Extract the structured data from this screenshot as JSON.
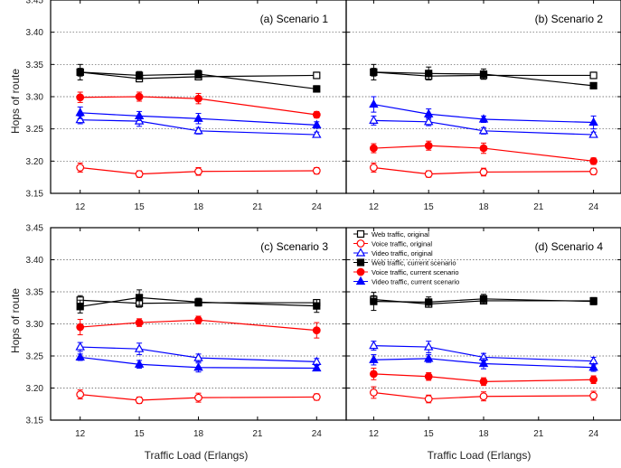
{
  "figure": {
    "y_axis_label": "Hops of route",
    "x_axis_label": "Traffic Load (Erlangs)"
  },
  "chart_data": [
    {
      "type": "line",
      "title": "(a) Scenario 1",
      "xlabel": "",
      "ylabel": "Hops of route",
      "x": [
        12,
        15,
        18,
        24
      ],
      "xlim": [
        10.5,
        25.5
      ],
      "xticks": [
        12,
        15,
        18,
        21,
        24
      ],
      "ylim": [
        3.15,
        3.45
      ],
      "yticks": [
        3.15,
        3.2,
        3.25,
        3.3,
        3.35,
        3.4,
        3.45
      ],
      "grid": "horizontal dotted",
      "series": [
        {
          "values": [
            3.338,
            3.328,
            3.331,
            3.333
          ],
          "err": [
            0.006,
            0.005,
            0.005,
            0.005
          ],
          "color": "#000000",
          "marker": "square",
          "filled": false
        },
        {
          "values": [
            3.19,
            3.18,
            3.184,
            3.185
          ],
          "err": [
            0.007,
            0.005,
            0.006,
            0.005
          ],
          "color": "#ff0000",
          "marker": "circle",
          "filled": false
        },
        {
          "values": [
            3.264,
            3.262,
            3.247,
            3.241
          ],
          "err": [
            0.006,
            0.008,
            0.005,
            0.004
          ],
          "color": "#0000ff",
          "marker": "triangle",
          "filled": false
        },
        {
          "values": [
            3.338,
            3.333,
            3.335,
            3.312
          ],
          "err": [
            0.012,
            0.006,
            0.006,
            0.005
          ],
          "color": "#000000",
          "marker": "square",
          "filled": true
        },
        {
          "values": [
            3.299,
            3.3,
            3.297,
            3.272
          ],
          "err": [
            0.008,
            0.007,
            0.008,
            0.005
          ],
          "color": "#ff0000",
          "marker": "circle",
          "filled": true
        },
        {
          "values": [
            3.275,
            3.27,
            3.266,
            3.256
          ],
          "err": [
            0.009,
            0.007,
            0.008,
            0.005
          ],
          "color": "#0000ff",
          "marker": "triangle",
          "filled": true
        }
      ]
    },
    {
      "type": "line",
      "title": "(b) Scenario 2",
      "xlabel": "",
      "ylabel": "",
      "x": [
        12,
        15,
        18,
        24
      ],
      "xlim": [
        10.5,
        25.5
      ],
      "xticks": [
        12,
        15,
        18,
        21,
        24
      ],
      "ylim": [
        3.15,
        3.45
      ],
      "yticks": [
        3.15,
        3.2,
        3.25,
        3.3,
        3.35,
        3.4,
        3.45
      ],
      "grid": "horizontal dotted",
      "series": [
        {
          "values": [
            3.338,
            3.332,
            3.333,
            3.333
          ],
          "err": [
            0.006,
            0.005,
            0.005,
            0.005
          ],
          "color": "#000000",
          "marker": "square",
          "filled": false
        },
        {
          "values": [
            3.19,
            3.18,
            3.183,
            3.184
          ],
          "err": [
            0.007,
            0.005,
            0.006,
            0.005
          ],
          "color": "#ff0000",
          "marker": "circle",
          "filled": false
        },
        {
          "values": [
            3.263,
            3.261,
            3.247,
            3.241
          ],
          "err": [
            0.007,
            0.006,
            0.005,
            0.004
          ],
          "color": "#0000ff",
          "marker": "triangle",
          "filled": false
        },
        {
          "values": [
            3.338,
            3.336,
            3.335,
            3.317
          ],
          "err": [
            0.012,
            0.01,
            0.008,
            0.004
          ],
          "color": "#000000",
          "marker": "square",
          "filled": true
        },
        {
          "values": [
            3.22,
            3.224,
            3.22,
            3.2
          ],
          "err": [
            0.007,
            0.007,
            0.008,
            0.005
          ],
          "color": "#ff0000",
          "marker": "circle",
          "filled": true
        },
        {
          "values": [
            3.288,
            3.273,
            3.265,
            3.26
          ],
          "err": [
            0.012,
            0.008,
            0.005,
            0.01
          ],
          "color": "#0000ff",
          "marker": "triangle",
          "filled": true
        }
      ]
    },
    {
      "type": "line",
      "title": "(c) Scenario 3",
      "xlabel": "Traffic Load (Erlangs)",
      "ylabel": "Hops of route",
      "x": [
        12,
        15,
        18,
        24
      ],
      "xlim": [
        10.5,
        25.5
      ],
      "xticks": [
        12,
        15,
        18,
        21,
        24
      ],
      "ylim": [
        3.15,
        3.45
      ],
      "yticks": [
        3.15,
        3.2,
        3.25,
        3.3,
        3.35,
        3.4,
        3.45
      ],
      "grid": "horizontal dotted",
      "series": [
        {
          "values": [
            3.337,
            3.332,
            3.333,
            3.333
          ],
          "err": [
            0.007,
            0.006,
            0.005,
            0.005
          ],
          "color": "#000000",
          "marker": "square",
          "filled": false
        },
        {
          "values": [
            3.19,
            3.181,
            3.185,
            3.186
          ],
          "err": [
            0.007,
            0.005,
            0.007,
            0.005
          ],
          "color": "#ff0000",
          "marker": "circle",
          "filled": false
        },
        {
          "values": [
            3.264,
            3.261,
            3.247,
            3.241
          ],
          "err": [
            0.007,
            0.009,
            0.006,
            0.005
          ],
          "color": "#0000ff",
          "marker": "triangle",
          "filled": false
        },
        {
          "values": [
            3.327,
            3.341,
            3.334,
            3.328
          ],
          "err": [
            0.01,
            0.012,
            0.006,
            0.01
          ],
          "color": "#000000",
          "marker": "square",
          "filled": true
        },
        {
          "values": [
            3.295,
            3.302,
            3.306,
            3.29
          ],
          "err": [
            0.012,
            0.006,
            0.006,
            0.012
          ],
          "color": "#ff0000",
          "marker": "circle",
          "filled": true
        },
        {
          "values": [
            3.248,
            3.237,
            3.232,
            3.231
          ],
          "err": [
            0.005,
            0.006,
            0.007,
            0.004
          ],
          "color": "#0000ff",
          "marker": "triangle",
          "filled": true
        }
      ]
    },
    {
      "type": "line",
      "title": "(d) Scenario 4",
      "xlabel": "Traffic Load (Erlangs)",
      "ylabel": "",
      "x": [
        12,
        15,
        18,
        24
      ],
      "xlim": [
        10.5,
        25.5
      ],
      "xticks": [
        12,
        15,
        18,
        21,
        24
      ],
      "ylim": [
        3.15,
        3.45
      ],
      "yticks": [
        3.15,
        3.2,
        3.25,
        3.3,
        3.35,
        3.4,
        3.45
      ],
      "grid": "horizontal dotted",
      "legend_position": "top-left",
      "series": [
        {
          "name": "Web traffic, original",
          "values": [
            3.338,
            3.331,
            3.336,
            3.336
          ],
          "err": [
            0.006,
            0.005,
            0.005,
            0.005
          ],
          "color": "#000000",
          "marker": "square",
          "filled": false
        },
        {
          "name": "Voice traffic, original",
          "values": [
            3.193,
            3.183,
            3.187,
            3.188
          ],
          "err": [
            0.009,
            0.006,
            0.007,
            0.007
          ],
          "color": "#ff0000",
          "marker": "circle",
          "filled": false
        },
        {
          "name": "Video traffic, original",
          "values": [
            3.266,
            3.264,
            3.248,
            3.242
          ],
          "err": [
            0.007,
            0.009,
            0.006,
            0.006
          ],
          "color": "#0000ff",
          "marker": "triangle",
          "filled": false
        },
        {
          "name": "Web traffic, current scenario",
          "values": [
            3.335,
            3.334,
            3.339,
            3.335
          ],
          "err": [
            0.014,
            0.008,
            0.007,
            0.005
          ],
          "color": "#000000",
          "marker": "square",
          "filled": true
        },
        {
          "name": "Voice traffic, current scenario",
          "values": [
            3.222,
            3.218,
            3.21,
            3.213
          ],
          "err": [
            0.009,
            0.006,
            0.006,
            0.006
          ],
          "color": "#ff0000",
          "marker": "circle",
          "filled": true
        },
        {
          "name": "Video traffic, current scenario",
          "values": [
            3.244,
            3.246,
            3.238,
            3.232
          ],
          "err": [
            0.008,
            0.006,
            0.008,
            0.006
          ],
          "color": "#0000ff",
          "marker": "triangle",
          "filled": true
        }
      ]
    }
  ]
}
